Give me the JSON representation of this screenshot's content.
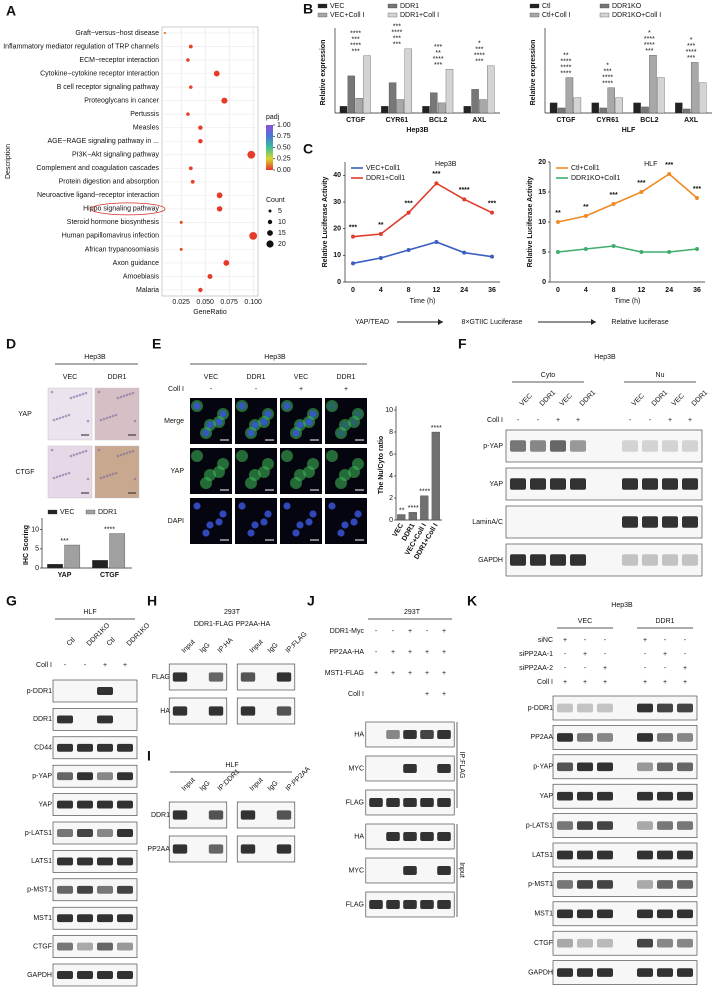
{
  "panels": {
    "A": {
      "label": "A",
      "chart_data": {
        "type": "scatter",
        "xlabel": "GeneRatio",
        "ylabel": "Description",
        "categories": [
          "Graft−versus−host disease",
          "Inflammatory mediator regulation of TRP channels",
          "ECM−receptor interaction",
          "Cytokine−cytokine receptor interaction",
          "B cell receptor signaling pathway",
          "Proteoglycans in cancer",
          "Pertussis",
          "Measles",
          "AGE−RAGE signaling pathway in ...",
          "PI3K−Akt signaling pathway",
          "Complement and coagulation cascades",
          "Protein digestion and absorption",
          "Neuroactive ligand−receptor interaction",
          "Hippo signaling pathway",
          "Steroid hormone biosynthesis",
          "Human papillomavirus infection",
          "African trypanosomiasis",
          "Axon guidance",
          "Amoebiasis",
          "Malaria"
        ],
        "x": [
          0.008,
          0.035,
          0.032,
          0.062,
          0.035,
          0.07,
          0.032,
          0.045,
          0.045,
          0.098,
          0.035,
          0.037,
          0.065,
          0.065,
          0.025,
          0.1,
          0.025,
          0.072,
          0.055,
          0.045
        ],
        "count": [
          2,
          8,
          7,
          15,
          7,
          16,
          7,
          10,
          10,
          22,
          8,
          8,
          15,
          14,
          5,
          22,
          5,
          15,
          12,
          10
        ],
        "padj": [
          0.1,
          0.02,
          0.02,
          0.01,
          0.02,
          0.01,
          0.02,
          0.01,
          0.01,
          0.01,
          0.02,
          0.02,
          0.01,
          0.01,
          0.03,
          0.01,
          0.03,
          0.01,
          0.01,
          0.01
        ],
        "xlim": [
          0.005,
          0.105
        ],
        "xticks": [
          {
            "value": 0.025,
            "label": "0.025"
          },
          {
            "value": 0.05,
            "label": "0.050"
          },
          {
            "value": 0.075,
            "label": "0.075"
          },
          {
            "value": 0.1,
            "label": "0.100"
          }
        ],
        "color_legend": {
          "title": "padj",
          "ticks": [
            {
              "value": 1,
              "label": "1.00"
            },
            0.75,
            {
              "value": 0.5,
              "label": "0.50"
            },
            0.25,
            {
              "value": 0,
              "label": "0.00"
            }
          ]
        },
        "size_legend": {
          "title": "Count",
          "values": [
            5,
            10,
            15,
            20
          ]
        }
      }
    },
    "B": {
      "label": "B",
      "charts": [
        {
          "type": "bar",
          "title": "Hep3B",
          "ylabel": "Relative expression",
          "categories": [
            "CTGF",
            "CYR61",
            "BCL2",
            "AXL"
          ],
          "series": [
            {
              "name": "VEC",
              "color": "#222222",
              "values": [
                1,
                1,
                1,
                1
              ]
            },
            {
              "name": "DDR1",
              "color": "#777777",
              "values": [
                5.5,
                4.5,
                3,
                3.5
              ]
            },
            {
              "name": "VEC+Coll I",
              "color": "#a8a8a8",
              "values": [
                2.2,
                2,
                1.5,
                2
              ]
            },
            {
              "name": "DDR1+Coll I",
              "color": "#d4d4d4",
              "values": [
                8.5,
                9.5,
                6.5,
                7
              ]
            }
          ],
          "ylim": [
            0,
            12
          ],
          "annotations": [
            [
              "***",
              "****",
              "***",
              "****"
            ],
            [
              "***",
              "***",
              "****",
              "***"
            ],
            [
              "***",
              "****",
              "**",
              "***"
            ],
            [
              "***",
              "****",
              "***",
              "*"
            ]
          ]
        },
        {
          "type": "bar",
          "title": "HLF",
          "ylabel": "Relative expression",
          "categories": [
            "CTGF",
            "CYR61",
            "BCL2",
            "AXL"
          ],
          "series": [
            {
              "name": "Ctl",
              "color": "#222222",
              "values": [
                1,
                1,
                1,
                1
              ]
            },
            {
              "name": "DDR1KO",
              "color": "#777777",
              "values": [
                0.5,
                0.5,
                0.6,
                0.4
              ]
            },
            {
              "name": "Ctl+Coll I",
              "color": "#a8a8a8",
              "values": [
                3.5,
                2.5,
                5.7,
                5
              ]
            },
            {
              "name": "DDR1KO+Coll I",
              "color": "#d4d4d4",
              "values": [
                1.5,
                1.5,
                3.5,
                3
              ]
            }
          ],
          "ylim": [
            0,
            8
          ],
          "annotations": [
            [
              "****",
              "****",
              "****",
              "**"
            ],
            [
              "****",
              "****",
              "***",
              "*"
            ],
            [
              "***",
              "****",
              "****",
              "*"
            ],
            [
              "***",
              "****",
              "***",
              "*"
            ]
          ]
        }
      ]
    },
    "C": {
      "label": "C",
      "charts": [
        {
          "type": "line",
          "title": "Hep3B",
          "xlabel": "Time (h)",
          "ylabel": "Relative Luciferase Activity",
          "categories": [
            "0",
            "4",
            "8",
            "12",
            "24",
            "36"
          ],
          "series": [
            {
              "name": "VEC+Coll1",
              "color": "#3b5fc0",
              "values": [
                7,
                9,
                12,
                15,
                11,
                9.5
              ]
            },
            {
              "name": "DDR1+Coll1",
              "color": "#e03b2b",
              "values": [
                17,
                18,
                26,
                37,
                31,
                26
              ]
            }
          ],
          "ylim": [
            0,
            45
          ],
          "yticks": [
            0,
            10,
            20,
            30,
            40
          ],
          "annotations": [
            "***",
            "**",
            "***",
            "***",
            "****",
            "***"
          ]
        },
        {
          "type": "line",
          "title": "HLF",
          "xlabel": "Time (h)",
          "ylabel": "Relative Luciferase Activity",
          "categories": [
            "0",
            "4",
            "8",
            "12",
            "24",
            "36"
          ],
          "series": [
            {
              "name": "Ctl+Coll1",
              "color": "#f08a24",
              "values": [
                10,
                11,
                13,
                15,
                18,
                14
              ]
            },
            {
              "name": "DDR1KO+Coll1",
              "color": "#3fae6e",
              "values": [
                5,
                5.5,
                6,
                5,
                5,
                5.5
              ]
            }
          ],
          "ylim": [
            0,
            20
          ],
          "yticks": [
            0,
            5,
            10,
            15,
            20
          ],
          "annotations": [
            "**",
            "**",
            "***",
            "***",
            "***",
            "***"
          ]
        }
      ],
      "caption": [
        "YAP/TEAD",
        "8×GTIIC Luciferase",
        "Relative luciferase"
      ]
    },
    "D": {
      "label": "D",
      "title": "Hep3B",
      "columns": [
        "VEC",
        "DDR1"
      ],
      "rows": [
        "YAP",
        "CTGF"
      ],
      "chart_data": {
        "type": "bar",
        "ylabel": "IHC Scoring",
        "categories": [
          "YAP",
          "CTGF"
        ],
        "series": [
          {
            "name": "VEC",
            "color": "#222222",
            "values": [
              1,
              2
            ]
          },
          {
            "name": "DDR1",
            "color": "#a0a0a0",
            "values": [
              6,
              9
            ]
          }
        ],
        "ylim": [
          0,
          12
        ],
        "yticks": [
          0,
          5,
          10
        ],
        "annotations": [
          [
            "***"
          ],
          [
            "****"
          ]
        ]
      }
    },
    "E": {
      "label": "E",
      "title": "Hep3B",
      "columns": [
        "VEC",
        "DDR1",
        "VEC",
        "DDR1"
      ],
      "treatment": {
        "name": "Coll I",
        "values": [
          "-",
          "-",
          "+",
          "+"
        ]
      },
      "rows": [
        "Merge",
        "YAP",
        "DAPI"
      ],
      "chart_data": {
        "type": "bar",
        "ylabel": "The Nu/Cyto ratio",
        "categories": [
          "VEC",
          "DDR1",
          "VEC+Coll I",
          "DDR1+Coll I"
        ],
        "values": [
          0.5,
          0.7,
          2.2,
          8
        ],
        "color": "#707070",
        "ylim": [
          0,
          10
        ],
        "yticks": [
          0,
          2,
          4,
          6,
          8,
          10
        ],
        "annotations": [
          [
            "**"
          ],
          [
            "****"
          ],
          [
            "****"
          ],
          [
            "****"
          ]
        ]
      }
    },
    "F": {
      "label": "F",
      "title": "Hep3B",
      "groups": [
        "Cyto",
        "Nu"
      ],
      "lanes": [
        "VEC",
        "DDR1",
        "VEC",
        "DDR1",
        "VEC",
        "DDR1",
        "VEC",
        "DDR1"
      ],
      "treatments": [
        {
          "name": "Coll I",
          "values": [
            "-",
            "-",
            "+",
            "+",
            "-",
            "-",
            "+",
            "+"
          ]
        }
      ],
      "rows": [
        "p-YAP",
        "YAP",
        "LaminA/C",
        "GAPDH"
      ]
    },
    "G": {
      "label": "G",
      "title": "HLF",
      "lanes": [
        "Ctl",
        "DDR1KO",
        "Ctl",
        "DDR1KO"
      ],
      "treatments": [
        {
          "name": "Coll I",
          "values": [
            "-",
            "-",
            "+",
            "+"
          ]
        }
      ],
      "rows": [
        "p-DDR1",
        "DDR1",
        "CD44",
        "p-YAP",
        "YAP",
        "p-LATS1",
        "LATS1",
        "p-MST1",
        "MST1",
        "CTGF",
        "GAPDH"
      ]
    },
    "H": {
      "label": "H",
      "title": "293T",
      "subtitle": "DDR1-FLAG PP2AA-HA",
      "lanes": [
        "Input",
        "IgG",
        "IP:HA",
        "Input",
        "IgG",
        "IP:FLAG"
      ],
      "rows": [
        "FLAG",
        "HA"
      ]
    },
    "I": {
      "label": "I",
      "title": "HLF",
      "lanes": [
        "Input",
        "IgG",
        "IP:DDR1",
        "Input",
        "IgG",
        "IP:PP2AA"
      ],
      "rows": [
        "DDR1",
        "PP2AA"
      ]
    },
    "J": {
      "label": "J",
      "title": "293T",
      "treatments": [
        {
          "name": "DDR1-Myc",
          "values": [
            "-",
            "-",
            "+",
            "-",
            "+"
          ]
        },
        {
          "name": "PP2AA-HA",
          "values": [
            "-",
            "+",
            "+",
            "+",
            "+"
          ]
        },
        {
          "name": "MST1-FLAG",
          "values": [
            "+",
            "+",
            "+",
            "+",
            "+"
          ]
        },
        {
          "name": "Coll I",
          "values": [
            null,
            null,
            null,
            "+",
            "+"
          ]
        }
      ],
      "rows": [
        "HA",
        "MYC",
        "FLAG",
        "HA",
        "MYC",
        "FLAG"
      ],
      "groups": [
        "IP:FLAG",
        "Input"
      ]
    },
    "K": {
      "label": "K",
      "title": "Hep3B",
      "groups": [
        "VEC",
        "DDR1"
      ],
      "treatments": [
        {
          "name": "siNC",
          "values": [
            "+",
            "-",
            "-",
            "+",
            "-",
            "-"
          ]
        },
        {
          "name": "siPP2AA-1",
          "values": [
            "-",
            "+",
            "-",
            "-",
            "+",
            "-"
          ]
        },
        {
          "name": "siPP2AA-2",
          "values": [
            "-",
            "-",
            "+",
            "-",
            "-",
            "+"
          ]
        },
        {
          "name": "Coll I",
          "values": [
            "+",
            "+",
            "+",
            "+",
            "+",
            "+"
          ]
        }
      ],
      "rows": [
        "p-DDR1",
        "PP2AA",
        "p-YAP",
        "YAP",
        "p-LATS1",
        "LATS1",
        "p-MST1",
        "MST1",
        "CTGF",
        "GAPDH"
      ]
    }
  }
}
